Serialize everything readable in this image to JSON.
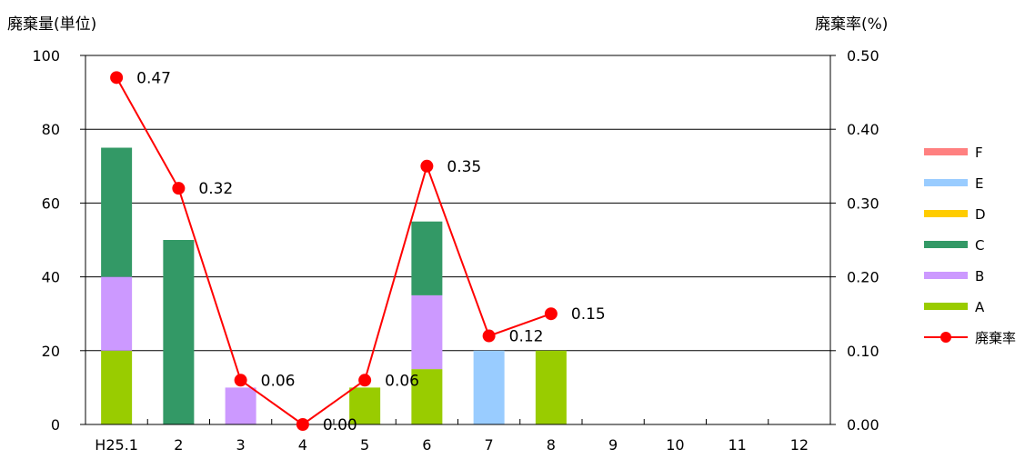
{
  "chart_data": {
    "type": "bar",
    "y_axis_title": "廃棄量(単位)",
    "y2_axis_title": "廃棄率(%)",
    "categories": [
      "H25.1",
      "2",
      "3",
      "4",
      "5",
      "6",
      "7",
      "8",
      "9",
      "10",
      "11",
      "12"
    ],
    "ylim": [
      0,
      100
    ],
    "y_ticks": [
      "0",
      "20",
      "40",
      "60",
      "80",
      "100"
    ],
    "y2lim": [
      0,
      0.5
    ],
    "y2_ticks": [
      "0.00",
      "0.10",
      "0.20",
      "0.30",
      "0.40",
      "0.50"
    ],
    "stacked": true,
    "grid": true,
    "legend_position": "right",
    "series": [
      {
        "name": "A",
        "color": "#99cc00",
        "values": [
          20,
          0,
          0,
          0,
          10,
          15,
          0,
          20,
          0,
          0,
          0,
          0
        ]
      },
      {
        "name": "B",
        "color": "#cc99ff",
        "values": [
          20,
          0,
          10,
          0,
          0,
          20,
          0,
          0,
          0,
          0,
          0,
          0
        ]
      },
      {
        "name": "C",
        "color": "#339966",
        "values": [
          35,
          50,
          0,
          0,
          0,
          20,
          0,
          0,
          0,
          0,
          0,
          0
        ]
      },
      {
        "name": "D",
        "color": "#ffcc00",
        "values": [
          0,
          0,
          0,
          0,
          0,
          0,
          0,
          0,
          0,
          0,
          0,
          0
        ]
      },
      {
        "name": "E",
        "color": "#99ccff",
        "values": [
          0,
          0,
          0,
          0,
          0,
          0,
          20,
          0,
          0,
          0,
          0,
          0
        ]
      },
      {
        "name": "F",
        "color": "#ff8080",
        "values": [
          0,
          0,
          0,
          0,
          0,
          0,
          0,
          0,
          0,
          0,
          0,
          0
        ]
      }
    ],
    "line_series": {
      "name": "廃棄率",
      "color": "#ff0000",
      "axis": "right",
      "values": [
        0.47,
        0.32,
        0.06,
        0.0,
        0.06,
        0.35,
        0.12,
        0.15
      ],
      "labels": [
        "0.47",
        "0.32",
        "0.06",
        "0.00",
        "0.06",
        "0.35",
        "0.12",
        "0.15"
      ]
    }
  }
}
